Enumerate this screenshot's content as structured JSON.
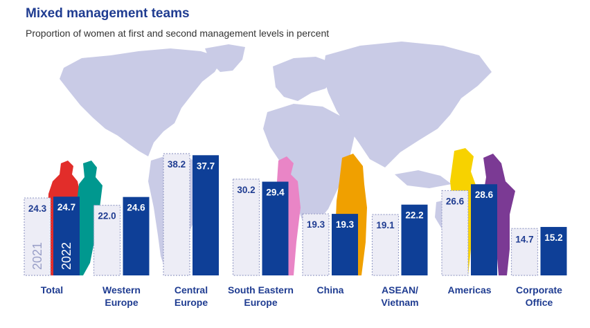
{
  "header": {
    "title": "Mixed management teams",
    "subtitle": "Proportion of women at first and second management levels in percent"
  },
  "colors": {
    "accent": "#1f3c91",
    "bar_2021_fill": "#ededf6",
    "bar_2021_border": "#9aa0c8",
    "bar_2022_fill": "#0e3f97",
    "map": "#c9cbe6",
    "silhouette_red": "#e22d2a",
    "silhouette_teal": "#00988f",
    "silhouette_pink": "#e985c6",
    "silhouette_orange": "#f0a000",
    "silhouette_yellow": "#f7d200",
    "silhouette_purple": "#7b3a94"
  },
  "chart_data": {
    "type": "bar",
    "title": "Mixed management teams",
    "subtitle": "Proportion of women at first and second management levels in percent",
    "categories": [
      "Total",
      "Western Europe",
      "Central Europe",
      "South Eastern Europe",
      "China",
      "ASEAN/ Vietnam",
      "Americas",
      "Corporate Office"
    ],
    "category_lines": [
      [
        "Total"
      ],
      [
        "Western",
        "Europe"
      ],
      [
        "Central",
        "Europe"
      ],
      [
        "South Eastern",
        "Europe"
      ],
      [
        "China"
      ],
      [
        "ASEAN/",
        "Vietnam"
      ],
      [
        "Americas"
      ],
      [
        "Corporate",
        "Office"
      ]
    ],
    "series": [
      {
        "name": "2021",
        "values": [
          24.3,
          22.0,
          38.2,
          30.2,
          19.3,
          19.1,
          26.6,
          14.7
        ]
      },
      {
        "name": "2022",
        "values": [
          24.7,
          24.6,
          37.7,
          29.4,
          19.3,
          22.2,
          28.6,
          15.2
        ]
      }
    ],
    "value_labels": [
      [
        "24.3",
        "22.0",
        "38.2",
        "30.2",
        "19.3",
        "19.1",
        "26.6",
        "14.7"
      ],
      [
        "24.7",
        "24.6",
        "37.7",
        "29.4",
        "19.3",
        "22.2",
        "28.6",
        "15.2"
      ]
    ],
    "ylim": [
      0,
      40
    ],
    "xlabel": "",
    "ylabel": "",
    "grid": false,
    "legend": "inside-first-bars"
  }
}
